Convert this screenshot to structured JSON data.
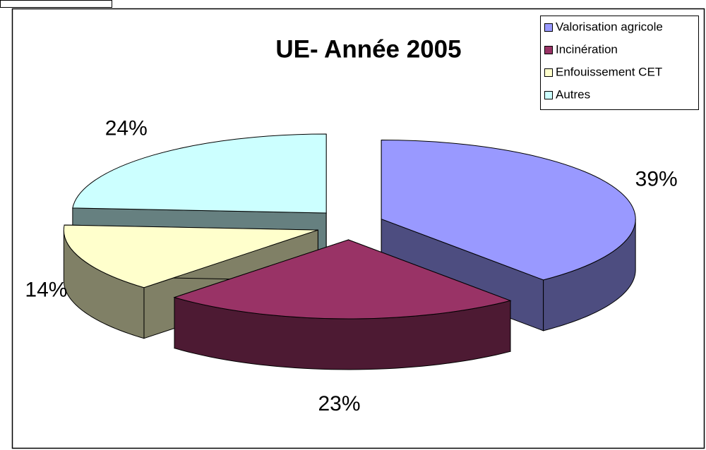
{
  "chart_data": {
    "type": "pie",
    "title": "UE- Année 2005",
    "categories": [
      "Valorisation agricole",
      "Incinération",
      "Enfouissement CET",
      "Autres"
    ],
    "values": [
      39,
      23,
      14,
      24
    ],
    "value_labels": [
      "39%",
      "23%",
      "14%",
      "24%"
    ],
    "colors": [
      "#9999ff",
      "#993366",
      "#ffffcc",
      "#ccffff"
    ],
    "legend": "top-right"
  }
}
